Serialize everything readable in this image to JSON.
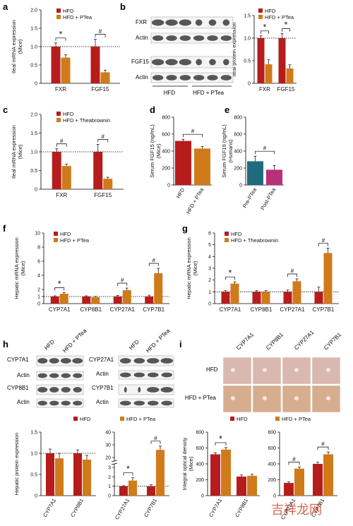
{
  "colors": {
    "red": "#b71c1c",
    "orange": "#d07a1a",
    "teal": "#1e6b7e",
    "pink": "#b8307a",
    "text": "#111111",
    "blot": "#3a3a3a",
    "stain": "#d9b8b0"
  },
  "panel_labels": [
    "a",
    "b",
    "c",
    "d",
    "e",
    "f",
    "g",
    "h",
    "i"
  ],
  "legends": {
    "hfd": "HFD",
    "hfd_ptea": "HFD + PTea",
    "hfd_theabrownin": "HFD + Theabrownin"
  },
  "blots": {
    "b_rows": [
      "FXR",
      "Actin",
      "FGF15",
      "Actin"
    ],
    "b_groups": [
      "HFD",
      "HFD + PTea"
    ],
    "h_left_rows": [
      "CYP7A1",
      "Actin",
      "CYP8B1",
      "Actin"
    ],
    "h_right_rows": [
      "CYP27A1",
      "Actin",
      "CYP7B1",
      "Actin"
    ],
    "h_groups": [
      "HFD",
      "HFD + PTea"
    ]
  },
  "histology": {
    "columns": [
      "CYP7A1",
      "CYP8B1",
      "CYP27A1",
      "CYP7B1"
    ],
    "rows": [
      "HFD",
      "HFD + PTea"
    ]
  },
  "watermark": "吉祥龙网",
  "chart_data": [
    {
      "panel": "a",
      "type": "bar",
      "categories": [
        "FXR",
        "FGF15"
      ],
      "ylabel": "Ileal mRNA expression (Mice)",
      "ylim": [
        0,
        2.0
      ],
      "yticks": [
        "0",
        "0.5",
        "1.0",
        "1.5",
        "2.0"
      ],
      "reference_line": 1.0,
      "series": [
        {
          "name": "HFD",
          "values": [
            1.0,
            1.0
          ],
          "err": [
            0.1,
            0.2
          ]
        },
        {
          "name": "HFD + PTea",
          "values": [
            0.7,
            0.3
          ],
          "err": [
            0.08,
            0.06
          ]
        }
      ],
      "significance": [
        "*",
        "#"
      ]
    },
    {
      "panel": "b",
      "type": "bar",
      "categories": [
        "FXR",
        "FGF15"
      ],
      "ylabel": "Ileal protein expression",
      "ylim": [
        0,
        1.5
      ],
      "yticks": [
        "0",
        "0.5",
        "1.0",
        "1.5"
      ],
      "reference_line": 1.0,
      "series": [
        {
          "name": "HFD",
          "values": [
            1.0,
            1.0
          ],
          "err": [
            0.05,
            0.1
          ]
        },
        {
          "name": "HFD + PTea",
          "values": [
            0.42,
            0.33
          ],
          "err": [
            0.1,
            0.08
          ]
        }
      ],
      "significance": [
        "*",
        "*"
      ]
    },
    {
      "panel": "c",
      "type": "bar",
      "categories": [
        "FXR",
        "FGF15"
      ],
      "ylabel": "Ileal mRNA expression (Mice)",
      "ylim": [
        0,
        2.0
      ],
      "yticks": [
        "0",
        "0.5",
        "1.0",
        "1.5",
        "2.0"
      ],
      "reference_line": 1.0,
      "series": [
        {
          "name": "HFD",
          "values": [
            1.0,
            1.0
          ],
          "err": [
            0.08,
            0.2
          ]
        },
        {
          "name": "HFD + Theabrownin",
          "values": [
            0.62,
            0.28
          ],
          "err": [
            0.05,
            0.04
          ]
        }
      ],
      "significance": [
        "#",
        "#"
      ]
    },
    {
      "panel": "d",
      "type": "bar",
      "categories": [
        "HFD",
        "HFD + PTea"
      ],
      "ylabel": "Serum FGF15 (ng/mL) (Mice)",
      "ylim": [
        0,
        800
      ],
      "yticks": [
        "0",
        "200",
        "400",
        "600",
        "800"
      ],
      "series": [
        {
          "name": "",
          "values": [
            520,
            430
          ],
          "err": [
            20,
            25
          ]
        }
      ],
      "significance": [
        "#"
      ]
    },
    {
      "panel": "e",
      "type": "bar",
      "categories": [
        "Pre-PTea",
        "Post-PTea"
      ],
      "ylabel": "Serum FGF19 (ng/mL) (Humans)",
      "ylim": [
        0,
        800
      ],
      "yticks": [
        "0",
        "200",
        "400",
        "600",
        "800"
      ],
      "series": [
        {
          "name": "",
          "values": [
            280,
            180
          ],
          "err": [
            60,
            50
          ]
        }
      ],
      "significance": [
        "#"
      ]
    },
    {
      "panel": "f",
      "type": "bar",
      "categories": [
        "CYP7A1",
        "CYP8B1",
        "CYP27A1",
        "CYP7B1"
      ],
      "ylabel": "Hepatic mRNA expression (Mice)",
      "ylim": [
        0,
        10
      ],
      "yticks": [
        "0",
        "1",
        "2",
        "4",
        "6",
        "8",
        "10"
      ],
      "reference_line": 1.0,
      "series": [
        {
          "name": "HFD",
          "values": [
            1.0,
            1.0,
            1.0,
            1.0
          ],
          "err": [
            0.1,
            0.1,
            0.15,
            0.2
          ]
        },
        {
          "name": "HFD + PTea",
          "values": [
            1.4,
            0.9,
            1.9,
            4.3
          ],
          "err": [
            0.15,
            0.12,
            0.3,
            0.7
          ]
        }
      ],
      "significance": [
        "*",
        "",
        "#",
        "#"
      ]
    },
    {
      "panel": "g",
      "type": "bar",
      "categories": [
        "CYP7A1",
        "CYP8B1",
        "CYP27A1",
        "CYP7B1"
      ],
      "ylabel": "Hepatic mRNA expression (Mice)",
      "ylim": [
        0,
        6
      ],
      "yticks": [
        "0",
        "1",
        "2",
        "3",
        "4",
        "5",
        "6"
      ],
      "reference_line": 1.0,
      "series": [
        {
          "name": "HFD",
          "values": [
            1.0,
            1.0,
            1.0,
            1.0
          ],
          "err": [
            0.1,
            0.1,
            0.15,
            0.4
          ]
        },
        {
          "name": "HFD + Theabrownin",
          "values": [
            1.7,
            1.0,
            1.9,
            4.3
          ],
          "err": [
            0.15,
            0.1,
            0.2,
            0.4
          ]
        }
      ],
      "significance": [
        "*",
        "",
        "#",
        "#"
      ]
    },
    {
      "panel": "h-left",
      "type": "bar",
      "categories": [
        "CYP7A1",
        "CYP8B1"
      ],
      "ylabel": "Hepatic protein expression",
      "ylim": [
        0,
        1.5
      ],
      "yticks": [
        "0",
        "0.5",
        "1.0",
        "1.5"
      ],
      "reference_line": 1.0,
      "series": [
        {
          "name": "HFD",
          "values": [
            1.0,
            1.0
          ],
          "err": [
            0.1,
            0.08
          ]
        },
        {
          "name": "HFD + PTea",
          "values": [
            0.88,
            0.85
          ],
          "err": [
            0.12,
            0.1
          ]
        }
      ]
    },
    {
      "panel": "h-right",
      "type": "bar",
      "categories": [
        "CYP27A1",
        "CYP7B1"
      ],
      "ylim": [
        0,
        40
      ],
      "yticks": [
        "0",
        "1",
        "2",
        "3",
        "20",
        "30",
        "40"
      ],
      "reference_line": 1.0,
      "series": [
        {
          "name": "HFD",
          "values": [
            1.0,
            1.0
          ],
          "err": [
            0.05,
            0.15
          ]
        },
        {
          "name": "HFD + PTea",
          "values": [
            1.6,
            26
          ],
          "err": [
            0.3,
            3
          ]
        }
      ],
      "significance": [
        "*",
        "#"
      ]
    },
    {
      "panel": "i-left",
      "type": "bar",
      "categories": [
        "CYP7A1",
        "CYP8B1"
      ],
      "ylabel": "Integral optical density (Mice)",
      "ylim": [
        0,
        800
      ],
      "yticks": [
        "0",
        "200",
        "400",
        "600",
        "800"
      ],
      "series": [
        {
          "name": "HFD",
          "values": [
            520,
            240
          ],
          "err": [
            20,
            20
          ]
        },
        {
          "name": "HFD + PTea",
          "values": [
            580,
            250
          ],
          "err": [
            25,
            20
          ]
        }
      ],
      "significance": [
        "*",
        ""
      ]
    },
    {
      "panel": "i-right",
      "type": "bar",
      "categories": [
        "CYP27A1",
        "CYP7B1"
      ],
      "ylim": [
        0,
        800
      ],
      "yticks": [
        "0",
        "200",
        "400",
        "600",
        "800"
      ],
      "series": [
        {
          "name": "HFD",
          "values": [
            160,
            400
          ],
          "err": [
            15,
            20
          ]
        },
        {
          "name": "HFD + PTea",
          "values": [
            340,
            520
          ],
          "err": [
            20,
            30
          ]
        }
      ],
      "significance": [
        "#",
        "#"
      ]
    }
  ]
}
